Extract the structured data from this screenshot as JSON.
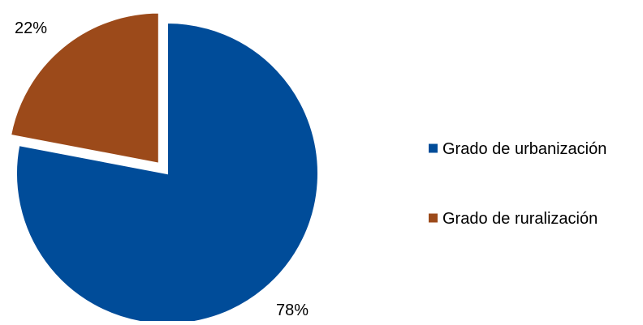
{
  "chart_data": {
    "type": "pie",
    "title": "",
    "categories": [
      "Grado de urbanización",
      "Grado de ruralización"
    ],
    "values": [
      78,
      22
    ],
    "value_labels": [
      "78%",
      "22%"
    ],
    "colors": [
      "#004C99",
      "#9C4A1A"
    ],
    "exploded": [
      false,
      true
    ],
    "start_angle_deg": 0,
    "direction": "clockwise",
    "legend": {
      "placement": "right",
      "entries": [
        "Grado de urbanización",
        "Grado de ruralización"
      ]
    }
  }
}
